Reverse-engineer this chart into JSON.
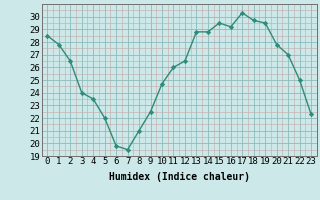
{
  "x": [
    0,
    1,
    2,
    3,
    4,
    5,
    6,
    7,
    8,
    9,
    10,
    11,
    12,
    13,
    14,
    15,
    16,
    17,
    18,
    19,
    20,
    21,
    22,
    23
  ],
  "y": [
    28.5,
    27.8,
    26.5,
    24.0,
    23.5,
    22.0,
    19.8,
    19.5,
    21.0,
    22.5,
    24.7,
    26.0,
    26.5,
    28.8,
    28.8,
    29.5,
    29.2,
    30.3,
    29.7,
    29.5,
    27.8,
    27.0,
    25.0,
    22.3
  ],
  "line_color": "#2e8b7a",
  "marker_color": "#2e8b7a",
  "bg_color": "#cce8e8",
  "grid_color": "#b0cccc",
  "grid_minor_color": "#d4b8b8",
  "xlabel": "Humidex (Indice chaleur)",
  "ylim": [
    19,
    31
  ],
  "xlim": [
    -0.5,
    23.5
  ],
  "yticks": [
    19,
    20,
    21,
    22,
    23,
    24,
    25,
    26,
    27,
    28,
    29,
    30
  ],
  "xticks": [
    0,
    1,
    2,
    3,
    4,
    5,
    6,
    7,
    8,
    9,
    10,
    11,
    12,
    13,
    14,
    15,
    16,
    17,
    18,
    19,
    20,
    21,
    22,
    23
  ],
  "label_fontsize": 7,
  "tick_fontsize": 6.5
}
